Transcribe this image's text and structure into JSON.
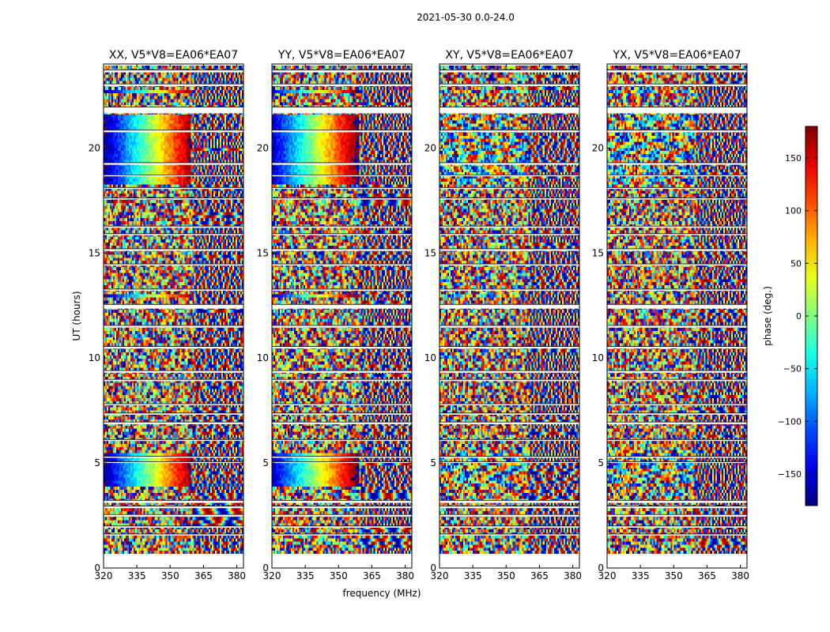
{
  "chart_data": {
    "type": "heatmap",
    "suptitle": "2021-05-30 0.0-24.0",
    "xlabel": "frequency (MHz)",
    "ylabel": "UT (hours)",
    "xlim": [
      320,
      383
    ],
    "ylim": [
      0,
      24
    ],
    "xticks": [
      320,
      335,
      350,
      365,
      380
    ],
    "yticks": [
      0,
      5,
      10,
      15,
      20
    ],
    "colorbar": {
      "label": "phase (deg.)",
      "range": [
        -180,
        180
      ],
      "ticks": [
        150,
        100,
        50,
        0,
        -50,
        -100,
        -150
      ],
      "tick_labels": [
        "150",
        "100",
        "50",
        "0",
        "−50",
        "−100",
        "−150"
      ],
      "colormap": "jet"
    },
    "panels": [
      {
        "title": "XX, V5*V8=EA06*EA07",
        "kind": "parallel"
      },
      {
        "title": "YY, V5*V8=EA06*EA07",
        "kind": "parallel"
      },
      {
        "title": "XY, V5*V8=EA06*EA07",
        "kind": "cross"
      },
      {
        "title": "YX, V5*V8=EA06*EA07",
        "kind": "cross"
      }
    ],
    "flagged_gaps_ut_hours": [
      [
        23.6,
        23.72
      ],
      [
        22.95,
        23.05
      ],
      [
        21.65,
        21.95
      ],
      [
        20.75,
        20.85
      ],
      [
        19.2,
        19.3
      ],
      [
        18.65,
        18.72
      ],
      [
        18.05,
        18.12
      ],
      [
        17.55,
        17.62
      ],
      [
        16.2,
        16.28
      ],
      [
        15.85,
        15.92
      ],
      [
        15.1,
        15.2
      ],
      [
        14.4,
        14.48
      ],
      [
        13.2,
        13.28
      ],
      [
        12.35,
        12.55
      ],
      [
        11.45,
        11.55
      ],
      [
        10.45,
        10.55
      ],
      [
        9.3,
        9.4
      ],
      [
        8.9,
        8.98
      ],
      [
        7.75,
        7.82
      ],
      [
        7.3,
        7.38
      ],
      [
        6.85,
        6.95
      ],
      [
        6.05,
        6.12
      ],
      [
        5.25,
        5.32
      ],
      [
        5.0,
        5.06
      ],
      [
        3.1,
        3.22
      ],
      [
        2.85,
        2.95
      ],
      [
        2.45,
        2.55
      ],
      [
        1.92,
        2.0
      ],
      [
        1.55,
        1.62
      ],
      [
        0.55,
        0.62
      ]
    ],
    "coherent_blocks_ut_hours": [
      [
        19.5,
        21.6
      ],
      [
        18.2,
        19.5
      ],
      [
        3.25,
        4.95
      ],
      [
        12.6,
        12.7
      ],
      [
        22.6,
        22.8
      ]
    ]
  }
}
